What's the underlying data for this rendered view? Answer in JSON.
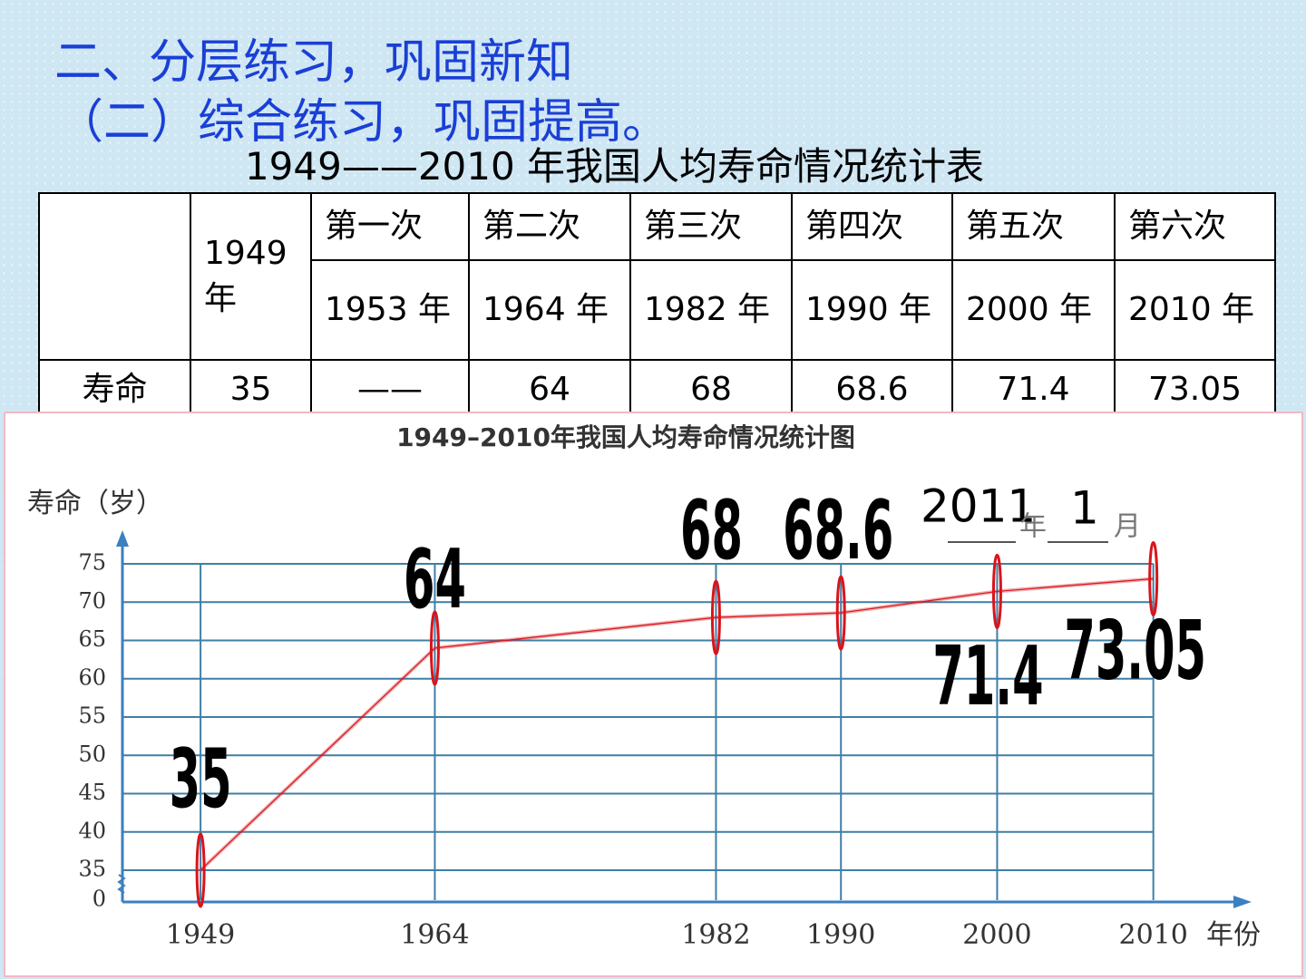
{
  "header": {
    "title": "二、分层练习，巩固新知",
    "subtitle": "（二）综合练习，巩固提高。"
  },
  "table": {
    "title": "1949——2010 年我国人均寿命情况统计表",
    "head": [
      [
        "1949 年",
        "第一次",
        "第二次",
        "第三次",
        "第四次",
        "第五次",
        "第六次"
      ],
      [
        "1953 年",
        "1964 年",
        "1982 年",
        "1990 年",
        "2000 年",
        "2010 年"
      ]
    ],
    "rows": [
      [
        "寿命",
        "35",
        "——",
        "64",
        "68",
        "68.6",
        "71.4",
        "73.05"
      ]
    ]
  },
  "chart_data": {
    "type": "line",
    "title": "1949–2010年我国人均寿命情况统计图",
    "y_label": "寿命（岁）",
    "x_label": "年份",
    "x": [
      1949,
      1964,
      1982,
      1990,
      2000,
      2010
    ],
    "values": [
      35,
      64,
      68,
      68.6,
      71.4,
      73.05
    ],
    "color": "#d9141b",
    "xlim": [
      1944,
      2016
    ],
    "xticks": [
      1949,
      1964,
      1982,
      1990,
      2000,
      2010
    ],
    "ylim": [
      0,
      75
    ],
    "yticks": [
      0,
      35,
      40,
      45,
      50,
      55,
      60,
      65,
      70,
      75
    ],
    "grid": true,
    "axis_break": true,
    "annotation": {
      "year": "2011",
      "year_unit": "年",
      "month": "1",
      "month_unit": "月"
    }
  }
}
